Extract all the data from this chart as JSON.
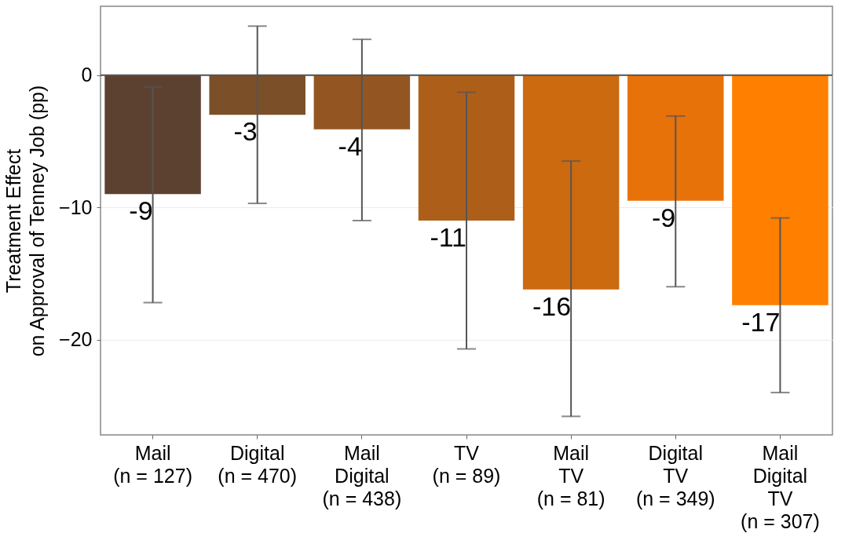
{
  "chart_data": {
    "type": "bar",
    "ylabel": "Treatment Effect\non Approval of Tenney Job (pp)",
    "categories": [
      "Mail\n(n = 127)",
      "Digital\n(n = 470)",
      "Mail\nDigital\n(n = 438)",
      "TV\n(n = 89)",
      "Mail\nTV\n(n = 81)",
      "Digital\nTV\n(n = 349)",
      "Mail\nDigital\nTV\n(n = 307)"
    ],
    "values": [
      -9.0,
      -3.0,
      -4.1,
      -11.0,
      -16.2,
      -9.5,
      -17.4
    ],
    "colors": [
      "#5d4130",
      "#7b4f28",
      "#935623",
      "#ad5f1a",
      "#cc6a10",
      "#e8720a",
      "#ff7f00"
    ],
    "value_labels": [
      "-9",
      "-3",
      "-4",
      "-11",
      "-16",
      "-9",
      "-17"
    ],
    "errors": [
      [
        -17.2,
        -0.9
      ],
      [
        -9.7,
        3.7
      ],
      [
        -11.0,
        2.7
      ],
      [
        -20.7,
        -1.3
      ],
      [
        -25.8,
        -6.5
      ],
      [
        -16.0,
        -3.1
      ],
      [
        -24.0,
        -10.8
      ]
    ],
    "ylim": [
      -27.2,
      5.2
    ],
    "yticks": [
      0,
      -10,
      -20
    ],
    "grid": true,
    "ref_lines": [
      {
        "axis": "y",
        "value": 0,
        "color": "#555555"
      }
    ]
  }
}
